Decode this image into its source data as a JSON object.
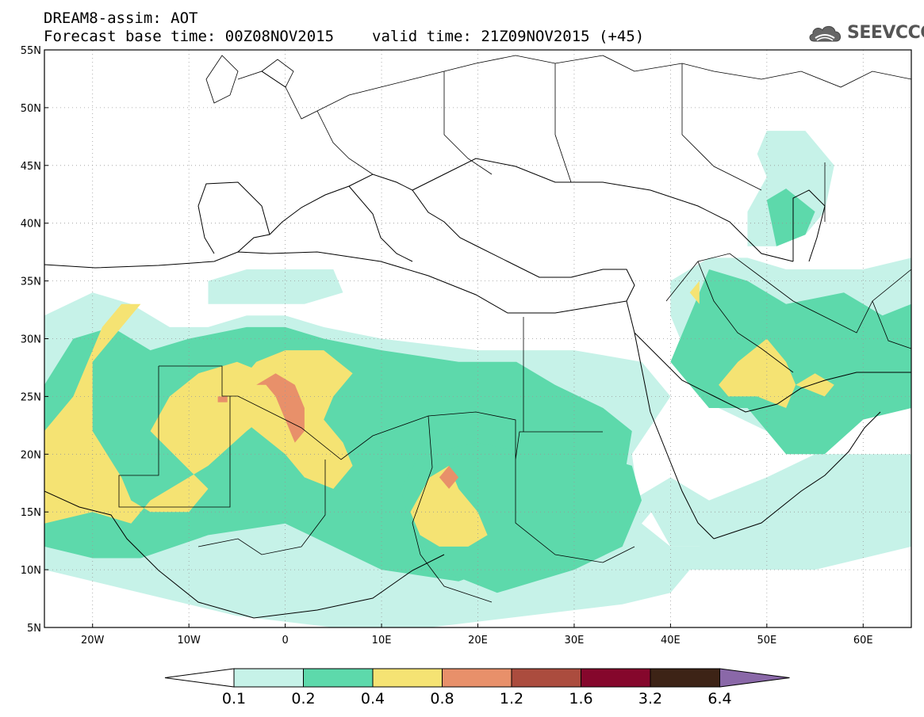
{
  "header": {
    "title": "DREAM8-assim: AOT",
    "base_time": "Forecast base time: 00Z08NOV2015",
    "valid_time": "valid time: 21Z09NOV2015 (+45)"
  },
  "logo": {
    "text": "SEEVCCC",
    "icon": "cloud-icon"
  },
  "map_extent": {
    "lon": [
      -25,
      65
    ],
    "lat": [
      5,
      55
    ]
  },
  "lat_ticks": [
    {
      "v": 55,
      "label": "55N"
    },
    {
      "v": 50,
      "label": "50N"
    },
    {
      "v": 45,
      "label": "45N"
    },
    {
      "v": 40,
      "label": "40N"
    },
    {
      "v": 35,
      "label": "35N"
    },
    {
      "v": 30,
      "label": "30N"
    },
    {
      "v": 25,
      "label": "25N"
    },
    {
      "v": 20,
      "label": "20N"
    },
    {
      "v": 15,
      "label": "15N"
    },
    {
      "v": 10,
      "label": "10N"
    },
    {
      "v": 5,
      "label": "5N"
    }
  ],
  "lon_ticks": [
    {
      "v": -20,
      "label": "20W"
    },
    {
      "v": -10,
      "label": "10W"
    },
    {
      "v": 0,
      "label": "0"
    },
    {
      "v": 10,
      "label": "10E"
    },
    {
      "v": 20,
      "label": "20E"
    },
    {
      "v": 30,
      "label": "30E"
    },
    {
      "v": 40,
      "label": "40E"
    },
    {
      "v": 50,
      "label": "50E"
    },
    {
      "v": 60,
      "label": "60E"
    }
  ],
  "colorbar": {
    "bins": [
      {
        "color": "#c6f2e8"
      },
      {
        "color": "#5dd9ab"
      },
      {
        "color": "#f5e373"
      },
      {
        "color": "#e8906a"
      },
      {
        "color": "#ab4c3e"
      },
      {
        "color": "#85072c"
      },
      {
        "color": "#3d2316"
      }
    ],
    "low_arrow_color": "#ffffff",
    "high_arrow_color": "#8a68a8",
    "labels": [
      "0.1",
      "0.2",
      "0.4",
      "0.8",
      "1.2",
      "1.6",
      "3.2",
      "6.4"
    ]
  },
  "dust_fields": [
    {
      "level": "0.1-0.2",
      "color": "#c6f2e8",
      "regions": [
        {
          "name": "west-africa-band",
          "pts": [
            [
              -25,
              10
            ],
            [
              -25,
              32
            ],
            [
              -20,
              34
            ],
            [
              -16,
              33
            ],
            [
              -12,
              31
            ],
            [
              -8,
              31
            ],
            [
              -4,
              32
            ],
            [
              0,
              32
            ],
            [
              4,
              31
            ],
            [
              10,
              30
            ],
            [
              20,
              29
            ],
            [
              30,
              29
            ],
            [
              37,
              28
            ],
            [
              40,
              25
            ],
            [
              36,
              20
            ],
            [
              37,
              14
            ],
            [
              40,
              12
            ],
            [
              43,
              12
            ],
            [
              44,
              16
            ],
            [
              50,
              18
            ],
            [
              55,
              20
            ],
            [
              65,
              20
            ],
            [
              65,
              12
            ],
            [
              55,
              10
            ],
            [
              45,
              10
            ],
            [
              42,
              10
            ],
            [
              40,
              8
            ],
            [
              35,
              7
            ],
            [
              25,
              6
            ],
            [
              15,
              5
            ],
            [
              5,
              5
            ],
            [
              -5,
              6
            ],
            [
              -15,
              8
            ],
            [
              -25,
              10
            ]
          ]
        },
        {
          "name": "middle-east-band",
          "pts": [
            [
              40,
              35
            ],
            [
              44,
              37
            ],
            [
              48,
              37
            ],
            [
              52,
              36
            ],
            [
              56,
              36
            ],
            [
              60,
              36
            ],
            [
              65,
              37
            ],
            [
              65,
              28
            ],
            [
              60,
              26
            ],
            [
              55,
              24
            ],
            [
              50,
              22
            ],
            [
              45,
              24
            ],
            [
              42,
              28
            ],
            [
              40,
              32
            ]
          ]
        },
        {
          "name": "caspian-band",
          "pts": [
            [
              49,
              46
            ],
            [
              50,
              48
            ],
            [
              54,
              48
            ],
            [
              57,
              45
            ],
            [
              56,
              41
            ],
            [
              54,
              39
            ],
            [
              51,
              38
            ],
            [
              48,
              38
            ],
            [
              48,
              41
            ],
            [
              50,
              44
            ]
          ]
        },
        {
          "name": "maghreb-band",
          "pts": [
            [
              -8,
              35
            ],
            [
              -4,
              36
            ],
            [
              2,
              36
            ],
            [
              5,
              36
            ],
            [
              6,
              34
            ],
            [
              2,
              33
            ],
            [
              -4,
              33
            ],
            [
              -8,
              33
            ]
          ]
        },
        {
          "name": "red-sea-band",
          "pts": [
            [
              35,
              12
            ],
            [
              38,
              15
            ],
            [
              40,
              12
            ],
            [
              45,
              12
            ],
            [
              50,
              14
            ],
            [
              48,
              16
            ],
            [
              44,
              16
            ],
            [
              40,
              18
            ],
            [
              36,
              16
            ]
          ]
        }
      ]
    },
    {
      "level": "0.2-0.4",
      "color": "#5dd9ab",
      "regions": [
        {
          "name": "sahara-core",
          "pts": [
            [
              -25,
              14
            ],
            [
              -25,
              26
            ],
            [
              -22,
              30
            ],
            [
              -18,
              31
            ],
            [
              -14,
              29
            ],
            [
              -10,
              30
            ],
            [
              -4,
              31
            ],
            [
              0,
              31
            ],
            [
              4,
              30
            ],
            [
              10,
              29
            ],
            [
              18,
              28
            ],
            [
              24,
              28
            ],
            [
              28,
              26
            ],
            [
              33,
              24
            ],
            [
              36,
              22
            ],
            [
              35,
              17
            ],
            [
              30,
              14
            ],
            [
              25,
              11
            ],
            [
              18,
              9
            ],
            [
              10,
              10
            ],
            [
              5,
              12
            ],
            [
              0,
              14
            ],
            [
              -8,
              13
            ],
            [
              -15,
              11
            ],
            [
              -20,
              11
            ],
            [
              -25,
              12
            ]
          ]
        },
        {
          "name": "sudan-chad",
          "pts": [
            [
              14,
              20
            ],
            [
              20,
              21
            ],
            [
              26,
              20
            ],
            [
              32,
              20
            ],
            [
              36,
              19
            ],
            [
              37,
              16
            ],
            [
              35,
              12
            ],
            [
              30,
              10
            ],
            [
              22,
              8
            ],
            [
              16,
              10
            ],
            [
              13,
              14
            ],
            [
              12,
              17
            ]
          ]
        },
        {
          "name": "gulf-iran",
          "pts": [
            [
              40,
              28
            ],
            [
              42,
              32
            ],
            [
              44,
              36
            ],
            [
              48,
              35
            ],
            [
              52,
              33
            ],
            [
              58,
              34
            ],
            [
              62,
              32
            ],
            [
              65,
              33
            ],
            [
              65,
              24
            ],
            [
              60,
              23
            ],
            [
              56,
              20
            ],
            [
              52,
              20
            ],
            [
              48,
              24
            ],
            [
              44,
              24
            ]
          ]
        },
        {
          "name": "caspian-core",
          "pts": [
            [
              51,
              38
            ],
            [
              50,
              42
            ],
            [
              52,
              43
            ],
            [
              55,
              41
            ],
            [
              54,
              39
            ]
          ]
        }
      ]
    },
    {
      "level": "0.4-0.8",
      "color": "#f5e373",
      "regions": [
        {
          "name": "west-sahara-plume",
          "pts": [
            [
              -25,
              14
            ],
            [
              -25,
              22
            ],
            [
              -22,
              25
            ],
            [
              -20,
              29
            ],
            [
              -19,
              31
            ],
            [
              -17,
              33
            ],
            [
              -15,
              33
            ],
            [
              -17,
              31
            ],
            [
              -20,
              28
            ],
            [
              -20,
              22
            ],
            [
              -17,
              18
            ],
            [
              -16,
              16
            ],
            [
              -14,
              15
            ],
            [
              -10,
              15
            ],
            [
              -8,
              17
            ],
            [
              -14,
              22
            ],
            [
              -12,
              25
            ],
            [
              -9,
              27
            ],
            [
              -5,
              28
            ],
            [
              -2,
              27
            ],
            [
              0,
              26
            ],
            [
              -1,
              24
            ],
            [
              -4,
              22
            ],
            [
              -8,
              19
            ],
            [
              -14,
              16
            ],
            [
              -16,
              14
            ],
            [
              -20,
              15
            ],
            [
              -25,
              14
            ]
          ]
        },
        {
          "name": "algeria-plume",
          "pts": [
            [
              -6,
              24
            ],
            [
              -3,
              22
            ],
            [
              0,
              20
            ],
            [
              2,
              18
            ],
            [
              5,
              17
            ],
            [
              7,
              19
            ],
            [
              6,
              21
            ],
            [
              4,
              23
            ],
            [
              5,
              25
            ],
            [
              7,
              27
            ],
            [
              4,
              29
            ],
            [
              0,
              29
            ],
            [
              -3,
              28
            ],
            [
              -5,
              26
            ]
          ]
        },
        {
          "name": "chad-plume",
          "pts": [
            [
              15,
              18
            ],
            [
              17,
              19
            ],
            [
              18,
              17
            ],
            [
              20,
              15
            ],
            [
              21,
              13
            ],
            [
              19,
              12
            ],
            [
              16,
              12
            ],
            [
              14,
              13
            ],
            [
              13,
              15
            ]
          ]
        },
        {
          "name": "gulf-plume",
          "pts": [
            [
              45,
              26
            ],
            [
              47,
              28
            ],
            [
              50,
              30
            ],
            [
              52,
              28
            ],
            [
              53,
              26
            ],
            [
              52,
              24
            ],
            [
              49,
              25
            ],
            [
              46,
              25
            ]
          ]
        },
        {
          "name": "iraq-plume",
          "pts": [
            [
              42,
              34
            ],
            [
              43,
              35
            ],
            [
              43,
              33
            ]
          ]
        },
        {
          "name": "iran-plume",
          "pts": [
            [
              53,
              26
            ],
            [
              55,
              27
            ],
            [
              57,
              26
            ],
            [
              56,
              25
            ]
          ]
        }
      ]
    },
    {
      "level": "0.8-1.2",
      "color": "#e8906a",
      "regions": [
        {
          "name": "algeria-core",
          "pts": [
            [
              -3,
              26
            ],
            [
              -1,
              27
            ],
            [
              1,
              26
            ],
            [
              2,
              24
            ],
            [
              2,
              22
            ],
            [
              1,
              21
            ],
            [
              0,
              23
            ],
            [
              -1,
              25
            ],
            [
              -2,
              26
            ]
          ]
        },
        {
          "name": "chad-core",
          "pts": [
            [
              16,
              18
            ],
            [
              17,
              19
            ],
            [
              18,
              18
            ],
            [
              17,
              17
            ]
          ]
        },
        {
          "name": "mali-core",
          "pts": [
            [
              -7,
              25
            ],
            [
              -6,
              25
            ],
            [
              -6,
              24.5
            ],
            [
              -7,
              24.5
            ]
          ]
        }
      ]
    }
  ]
}
